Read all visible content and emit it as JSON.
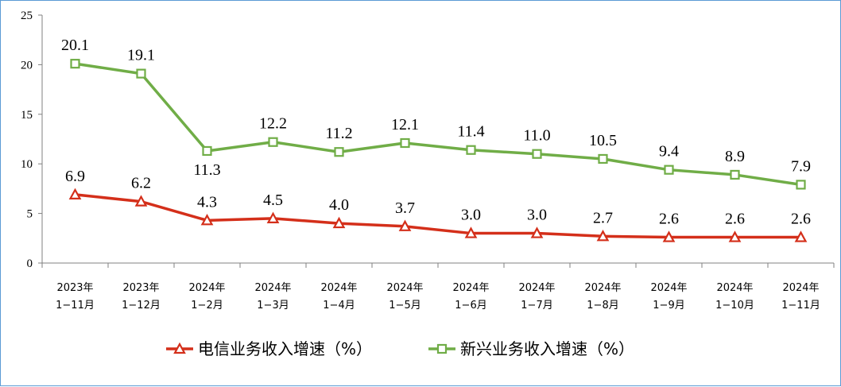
{
  "chart_data": {
    "type": "line",
    "categories": [
      [
        "2023年",
        "1−11月"
      ],
      [
        "2023年",
        "1−12月"
      ],
      [
        "2024年",
        "1−2月"
      ],
      [
        "2024年",
        "1−3月"
      ],
      [
        "2024年",
        "1−4月"
      ],
      [
        "2024年",
        "1−5月"
      ],
      [
        "2024年",
        "1−6月"
      ],
      [
        "2024年",
        "1−7月"
      ],
      [
        "2024年",
        "1−8月"
      ],
      [
        "2024年",
        "1−9月"
      ],
      [
        "2024年",
        "1−10月"
      ],
      [
        "2024年",
        "1−11月"
      ]
    ],
    "series": [
      {
        "name": "电信业务收入增速（%）",
        "color": "#d42f1a",
        "marker": "triangle",
        "values": [
          6.9,
          6.2,
          4.3,
          4.5,
          4.0,
          3.7,
          3.0,
          3.0,
          2.7,
          2.6,
          2.6,
          2.6
        ],
        "labels": [
          "6.9",
          "6.2",
          "4.3",
          "4.5",
          "4.0",
          "3.7",
          "3.0",
          "3.0",
          "2.7",
          "2.6",
          "2.6",
          "2.6"
        ]
      },
      {
        "name": "新兴业务收入增速（%）",
        "color": "#70ad47",
        "marker": "square",
        "values": [
          20.1,
          19.1,
          11.3,
          12.2,
          11.2,
          12.1,
          11.4,
          11.0,
          10.5,
          9.4,
          8.9,
          7.9
        ],
        "labels": [
          "20.1",
          "19.1",
          "11.3",
          "12.2",
          "11.2",
          "12.1",
          "11.4",
          "11.0",
          "10.5",
          "9.4",
          "8.9",
          "7.9"
        ]
      }
    ],
    "yticks": [
      "0",
      "5",
      "10",
      "15",
      "20",
      "25"
    ],
    "ylim": [
      0,
      25
    ],
    "legend_position": "bottom",
    "grid": false
  }
}
